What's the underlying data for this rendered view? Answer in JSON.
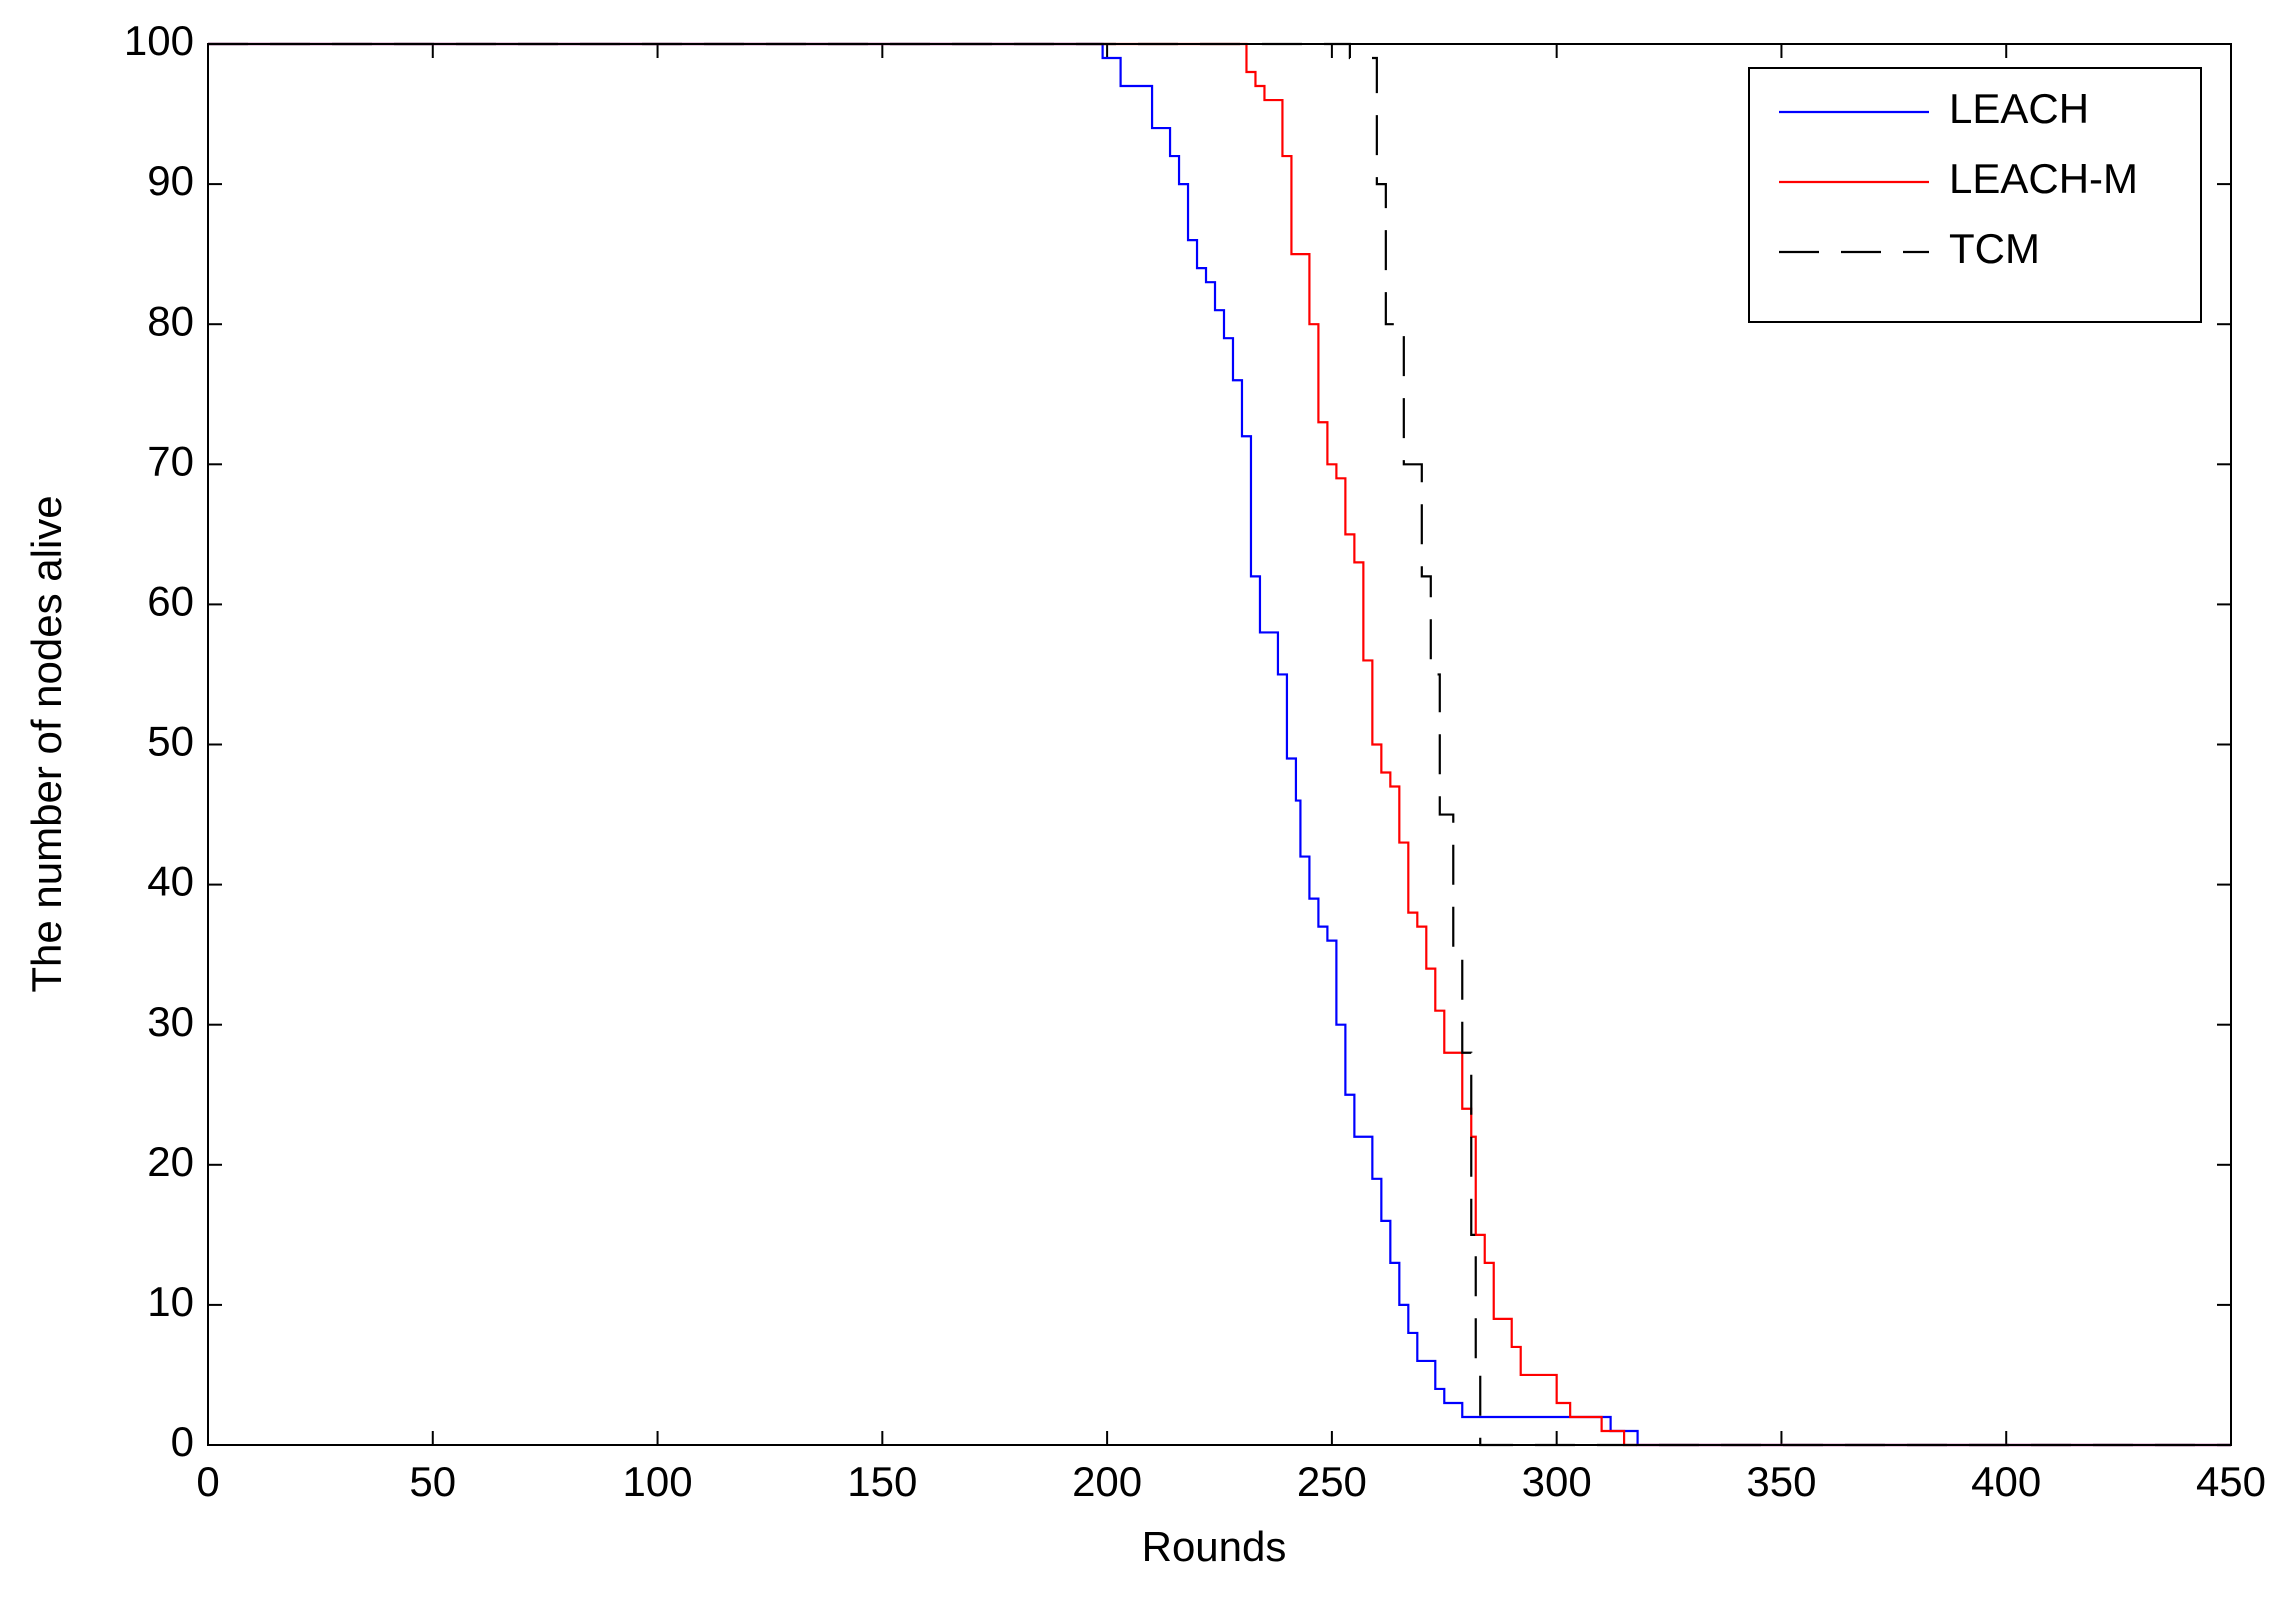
{
  "chart_data": {
    "type": "line",
    "xlabel": "Rounds",
    "ylabel": "The number of nodes alive",
    "xlim": [
      0,
      450
    ],
    "xticks": [
      0,
      50,
      100,
      150,
      200,
      250,
      300,
      350,
      400,
      450
    ],
    "ylim": [
      0,
      100
    ],
    "yticks": [
      0,
      10,
      20,
      30,
      40,
      50,
      60,
      70,
      80,
      90,
      100
    ],
    "legend": "upper-right",
    "step": true,
    "series": [
      {
        "name": "LEACH",
        "color": "#0000ff",
        "dash": "solid",
        "x": [
          0,
          197,
          199,
          201,
          203,
          208,
          210,
          212,
          214,
          216,
          218,
          220,
          222,
          224,
          226,
          228,
          230,
          232,
          234,
          236,
          238,
          240,
          242,
          243,
          245,
          247,
          249,
          251,
          253,
          255,
          257,
          259,
          261,
          263,
          265,
          267,
          269,
          271,
          273,
          275,
          277,
          279,
          310,
          312,
          315,
          318,
          450
        ],
        "values": [
          100,
          100,
          99,
          99,
          97,
          97,
          94,
          94,
          92,
          90,
          86,
          84,
          83,
          81,
          79,
          76,
          72,
          62,
          58,
          58,
          55,
          49,
          46,
          42,
          39,
          37,
          36,
          30,
          25,
          22,
          22,
          19,
          16,
          13,
          10,
          8,
          6,
          6,
          4,
          3,
          3,
          2,
          2,
          1,
          1,
          0,
          0
        ]
      },
      {
        "name": "LEACH-M",
        "color": "#ff0000",
        "dash": "solid",
        "x": [
          0,
          229,
          231,
          233,
          235,
          237,
          239,
          241,
          243,
          245,
          247,
          249,
          251,
          253,
          255,
          257,
          259,
          261,
          263,
          265,
          267,
          269,
          271,
          273,
          275,
          277,
          279,
          281,
          282,
          284,
          286,
          288,
          290,
          292,
          298,
          300,
          303,
          308,
          310,
          313,
          315,
          450
        ],
        "values": [
          100,
          100,
          98,
          97,
          96,
          96,
          92,
          85,
          85,
          80,
          73,
          70,
          69,
          65,
          63,
          56,
          50,
          48,
          47,
          43,
          38,
          37,
          34,
          31,
          28,
          28,
          24,
          22,
          15,
          13,
          9,
          9,
          7,
          5,
          5,
          3,
          2,
          2,
          1,
          1,
          0,
          0
        ]
      },
      {
        "name": "TCM",
        "color": "#000000",
        "dash": "dashed",
        "x": [
          0,
          254,
          256,
          260,
          262,
          266,
          270,
          272,
          274,
          277,
          279,
          281,
          282,
          283,
          450
        ],
        "values": [
          100,
          99,
          99,
          90,
          80,
          70,
          62,
          55,
          45,
          35,
          28,
          15,
          5,
          0,
          0
        ]
      }
    ]
  }
}
